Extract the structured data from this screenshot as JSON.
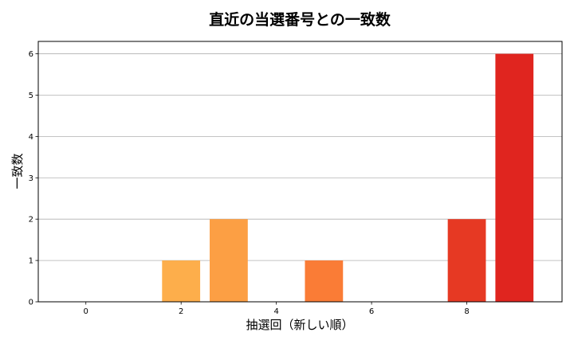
{
  "chart_data": {
    "type": "bar",
    "title": "直近の当選番号との一致数",
    "xlabel": "抽選回（新しい順）",
    "ylabel": "一致数",
    "x": [
      0,
      1,
      2,
      3,
      4,
      5,
      6,
      7,
      8,
      9
    ],
    "values": [
      0,
      0,
      1,
      2,
      0,
      1,
      0,
      0,
      2,
      6
    ],
    "bar_colors": [
      "#fec05c",
      "#feb852",
      "#fdae4b",
      "#fc9f44",
      "#fd8d3c",
      "#fa7c36",
      "#f3652f",
      "#ee4f29",
      "#e63923",
      "#e0251f"
    ],
    "xlim": [
      -1,
      10
    ],
    "ylim": [
      0,
      6.3
    ],
    "xticks": [
      0,
      2,
      4,
      6,
      8
    ],
    "yticks": [
      0,
      1,
      2,
      3,
      4,
      5,
      6
    ],
    "grid": "horizontal",
    "legend": null
  }
}
